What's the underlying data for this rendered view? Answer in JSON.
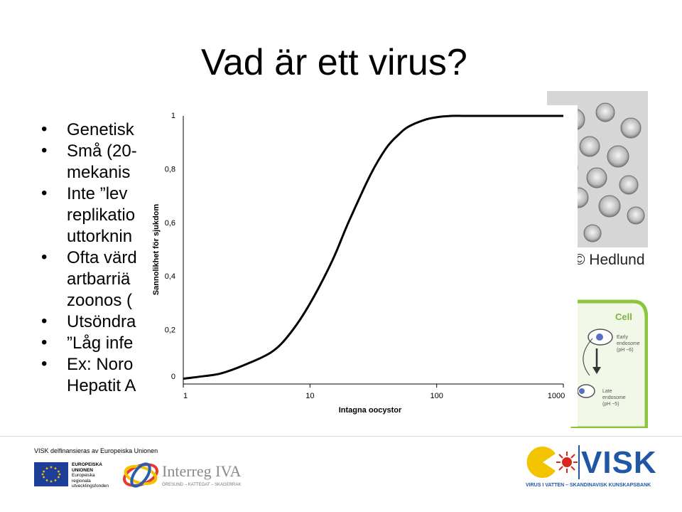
{
  "slide": {
    "title": "Vad är ett virus?",
    "bullets": [
      {
        "lines": [
          "Genetisk"
        ]
      },
      {
        "lines": [
          "Små (20-",
          "mekanis"
        ]
      },
      {
        "lines": [
          "Inte ”lev",
          "replikatio",
          "uttorknin"
        ]
      },
      {
        "lines": [
          "Ofta värd",
          "artbarriä",
          "zoonos ("
        ]
      },
      {
        "lines": [
          "Utsöndra"
        ]
      },
      {
        "lines": [
          "”Låg infe"
        ]
      },
      {
        "lines": [
          "Ex: Noro",
          "Hepatit A"
        ]
      }
    ],
    "photo_credit": "© Hedlund",
    "cell_diagram": {
      "title": "Cell",
      "early": [
        "Early",
        "endosome",
        "(pH ~6)"
      ],
      "late": [
        "Late",
        "endosome",
        "(pH ~5)"
      ]
    }
  },
  "chart_data": {
    "type": "line",
    "x_scale": "log",
    "xlim": [
      1,
      1000
    ],
    "ylim": [
      0,
      1
    ],
    "xlabel": "Intagna oocystor",
    "ylabel": "Sannolikhet för sjukdom",
    "x_ticks": [
      "1",
      "10",
      "100",
      "1000"
    ],
    "y_ticks": [
      "0",
      "0,2",
      "0,4",
      "0,6",
      "0,8",
      "1"
    ],
    "grid": false,
    "series": [
      {
        "color": "#000000",
        "x": [
          1,
          1.5,
          2,
          3,
          5,
          7,
          10,
          15,
          20,
          30,
          40,
          50,
          60,
          80,
          100,
          130,
          160,
          200,
          300,
          500,
          1000
        ],
        "y": [
          0.02,
          0.03,
          0.04,
          0.07,
          0.12,
          0.19,
          0.3,
          0.46,
          0.6,
          0.78,
          0.88,
          0.93,
          0.96,
          0.985,
          0.995,
          1.0,
          1.0,
          1.0,
          1.0,
          1.0,
          1.0
        ]
      }
    ]
  },
  "footer": {
    "funding_text": "VISK delfinansieras av Europeiska Unionen",
    "eu_text": [
      "EUROPEISKA",
      "UNIONEN",
      "Europeiska",
      "regionala",
      "utvecklingsfonden"
    ],
    "interreg_name": "Interreg IVA",
    "interreg_sub": "ÖRESUND – KATTEGAT – SKAGERRAK",
    "visk_name": "VISK",
    "visk_sub": "VIRUS I VATTEN – SKANDINAVISK KUNSKAPSBANK"
  },
  "colors": {
    "visk_blue": "#1f57a6",
    "visk_yellow": "#f2c400",
    "visk_red": "#d9261c",
    "eu_blue": "#1e3f99",
    "cell_green": "#8cc63f"
  }
}
